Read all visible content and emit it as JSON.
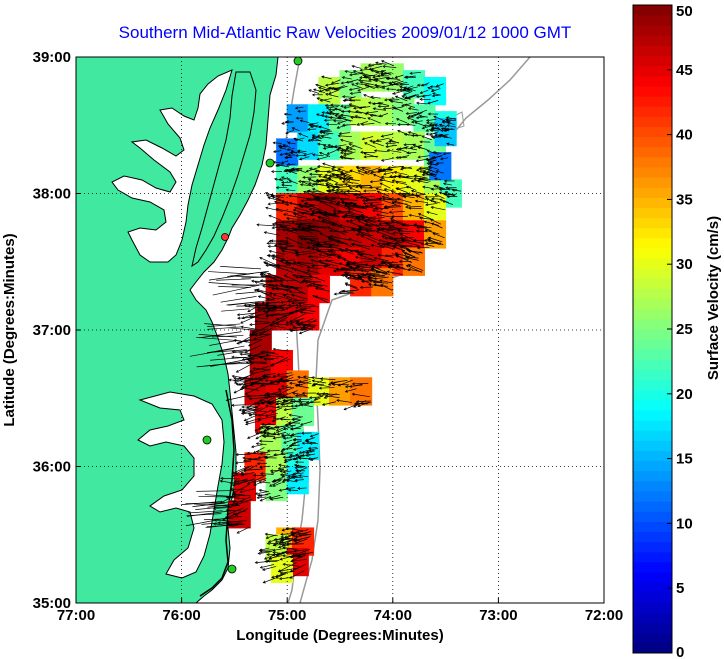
{
  "chart_data": {
    "type": "heatmap",
    "title": "Southern Mid-Atlantic Raw Velocities 2009/01/12 1000 GMT",
    "xlabel": "Longitude (Degrees:Minutes)",
    "ylabel": "Latitude (Degrees:Minutes)",
    "colorbar_label": "Surface Velocity (cm/s)",
    "xlim": [
      -77,
      -72
    ],
    "ylim": [
      35,
      39
    ],
    "x_ticks": [
      {
        "value": -77,
        "label": "77:00"
      },
      {
        "value": -76,
        "label": "76:00"
      },
      {
        "value": -75,
        "label": "75:00"
      },
      {
        "value": -74,
        "label": "74:00"
      },
      {
        "value": -73,
        "label": "73:00"
      },
      {
        "value": -72,
        "label": "72:00"
      }
    ],
    "y_ticks": [
      {
        "value": 35,
        "label": "35:00"
      },
      {
        "value": 36,
        "label": "36:00"
      },
      {
        "value": 37,
        "label": "37:00"
      },
      {
        "value": 38,
        "label": "38:00"
      },
      {
        "value": 39,
        "label": "39:00"
      }
    ],
    "colorbar": {
      "min": 0,
      "max": 50,
      "ticks": [
        {
          "value": 0,
          "label": "0"
        },
        {
          "value": 5,
          "label": "5"
        },
        {
          "value": 10,
          "label": "10"
        },
        {
          "value": 15,
          "label": "15"
        },
        {
          "value": 20,
          "label": "20"
        },
        {
          "value": 25,
          "label": "25"
        },
        {
          "value": 30,
          "label": "30"
        },
        {
          "value": 35,
          "label": "35"
        },
        {
          "value": 40,
          "label": "40"
        },
        {
          "value": 45,
          "label": "45"
        },
        {
          "value": 50,
          "label": "50"
        }
      ]
    },
    "grid": true,
    "velocity_cells": [
      {
        "lon": -74.6,
        "lat": 38.75,
        "speed": 28
      },
      {
        "lon": -74.4,
        "lat": 38.8,
        "speed": 25
      },
      {
        "lon": -74.2,
        "lat": 38.85,
        "speed": 27
      },
      {
        "lon": -74.0,
        "lat": 38.85,
        "speed": 26
      },
      {
        "lon": -73.8,
        "lat": 38.8,
        "speed": 22
      },
      {
        "lon": -73.6,
        "lat": 38.75,
        "speed": 19
      },
      {
        "lon": -74.9,
        "lat": 38.55,
        "speed": 14
      },
      {
        "lon": -74.7,
        "lat": 38.55,
        "speed": 18
      },
      {
        "lon": -74.5,
        "lat": 38.55,
        "speed": 24
      },
      {
        "lon": -74.3,
        "lat": 38.6,
        "speed": 28
      },
      {
        "lon": -74.1,
        "lat": 38.6,
        "speed": 27
      },
      {
        "lon": -73.9,
        "lat": 38.6,
        "speed": 25
      },
      {
        "lon": -73.7,
        "lat": 38.55,
        "speed": 23
      },
      {
        "lon": -73.5,
        "lat": 38.5,
        "speed": 20
      },
      {
        "lon": -75.0,
        "lat": 38.3,
        "speed": 12
      },
      {
        "lon": -74.8,
        "lat": 38.35,
        "speed": 17
      },
      {
        "lon": -74.6,
        "lat": 38.35,
        "speed": 22
      },
      {
        "lon": -74.4,
        "lat": 38.35,
        "speed": 27
      },
      {
        "lon": -74.2,
        "lat": 38.35,
        "speed": 29
      },
      {
        "lon": -74.0,
        "lat": 38.35,
        "speed": 28
      },
      {
        "lon": -73.8,
        "lat": 38.35,
        "speed": 27
      },
      {
        "lon": -73.6,
        "lat": 38.3,
        "speed": 24
      },
      {
        "lon": -73.5,
        "lat": 38.45,
        "speed": 16
      },
      {
        "lon": -75.0,
        "lat": 38.1,
        "speed": 22
      },
      {
        "lon": -74.8,
        "lat": 38.1,
        "speed": 26
      },
      {
        "lon": -74.6,
        "lat": 38.1,
        "speed": 30
      },
      {
        "lon": -74.4,
        "lat": 38.1,
        "speed": 33
      },
      {
        "lon": -74.2,
        "lat": 38.1,
        "speed": 35
      },
      {
        "lon": -74.0,
        "lat": 38.1,
        "speed": 32
      },
      {
        "lon": -73.8,
        "lat": 38.1,
        "speed": 30
      },
      {
        "lon": -73.6,
        "lat": 38.1,
        "speed": 27
      },
      {
        "lon": -73.45,
        "lat": 38.0,
        "speed": 22
      },
      {
        "lon": -73.55,
        "lat": 38.2,
        "speed": 12
      },
      {
        "lon": -75.0,
        "lat": 37.9,
        "speed": 42
      },
      {
        "lon": -74.8,
        "lat": 37.9,
        "speed": 46
      },
      {
        "lon": -74.6,
        "lat": 37.9,
        "speed": 48
      },
      {
        "lon": -74.4,
        "lat": 37.9,
        "speed": 45
      },
      {
        "lon": -74.2,
        "lat": 37.9,
        "speed": 44
      },
      {
        "lon": -74.0,
        "lat": 37.9,
        "speed": 40
      },
      {
        "lon": -73.8,
        "lat": 37.9,
        "speed": 35
      },
      {
        "lon": -73.6,
        "lat": 37.9,
        "speed": 30
      },
      {
        "lon": -75.0,
        "lat": 37.7,
        "speed": 48
      },
      {
        "lon": -74.8,
        "lat": 37.7,
        "speed": 50
      },
      {
        "lon": -74.6,
        "lat": 37.7,
        "speed": 49
      },
      {
        "lon": -74.4,
        "lat": 37.7,
        "speed": 47
      },
      {
        "lon": -74.2,
        "lat": 37.7,
        "speed": 46
      },
      {
        "lon": -74.0,
        "lat": 37.7,
        "speed": 47
      },
      {
        "lon": -73.8,
        "lat": 37.7,
        "speed": 44
      },
      {
        "lon": -73.6,
        "lat": 37.7,
        "speed": 36
      },
      {
        "lon": -75.0,
        "lat": 37.5,
        "speed": 47
      },
      {
        "lon": -74.8,
        "lat": 37.5,
        "speed": 48
      },
      {
        "lon": -74.6,
        "lat": 37.5,
        "speed": 45
      },
      {
        "lon": -74.4,
        "lat": 37.5,
        "speed": 44
      },
      {
        "lon": -74.2,
        "lat": 37.5,
        "speed": 46
      },
      {
        "lon": -74.0,
        "lat": 37.5,
        "speed": 42
      },
      {
        "lon": -73.8,
        "lat": 37.5,
        "speed": 38
      },
      {
        "lon": -75.1,
        "lat": 37.3,
        "speed": 46
      },
      {
        "lon": -74.9,
        "lat": 37.3,
        "speed": 47
      },
      {
        "lon": -74.7,
        "lat": 37.3,
        "speed": 44
      },
      {
        "lon": -74.3,
        "lat": 37.35,
        "speed": 42
      },
      {
        "lon": -74.1,
        "lat": 37.35,
        "speed": 38
      },
      {
        "lon": -75.2,
        "lat": 37.1,
        "speed": 48
      },
      {
        "lon": -75.0,
        "lat": 37.1,
        "speed": 46
      },
      {
        "lon": -74.8,
        "lat": 37.1,
        "speed": 44
      },
      {
        "lon": -75.25,
        "lat": 36.9,
        "speed": 48
      },
      {
        "lon": -75.25,
        "lat": 36.7,
        "speed": 47
      },
      {
        "lon": -75.05,
        "lat": 36.75,
        "speed": 44
      },
      {
        "lon": -75.3,
        "lat": 36.55,
        "speed": 46
      },
      {
        "lon": -75.1,
        "lat": 36.55,
        "speed": 45
      },
      {
        "lon": -74.9,
        "lat": 36.6,
        "speed": 38
      },
      {
        "lon": -74.7,
        "lat": 36.55,
        "speed": 30
      },
      {
        "lon": -74.5,
        "lat": 36.55,
        "speed": 36
      },
      {
        "lon": -74.3,
        "lat": 36.55,
        "speed": 38
      },
      {
        "lon": -75.2,
        "lat": 36.35,
        "speed": 44
      },
      {
        "lon": -75.0,
        "lat": 36.4,
        "speed": 28
      },
      {
        "lon": -74.85,
        "lat": 36.4,
        "speed": 24
      },
      {
        "lon": -75.15,
        "lat": 36.2,
        "speed": 27
      },
      {
        "lon": -74.95,
        "lat": 36.2,
        "speed": 23
      },
      {
        "lon": -74.8,
        "lat": 36.15,
        "speed": 18
      },
      {
        "lon": -75.3,
        "lat": 36.0,
        "speed": 42
      },
      {
        "lon": -75.1,
        "lat": 36.0,
        "speed": 27
      },
      {
        "lon": -74.9,
        "lat": 36.0,
        "speed": 20
      },
      {
        "lon": -75.4,
        "lat": 35.85,
        "speed": 45
      },
      {
        "lon": -75.1,
        "lat": 35.85,
        "speed": 25
      },
      {
        "lon": -74.9,
        "lat": 35.9,
        "speed": 18
      },
      {
        "lon": -75.45,
        "lat": 35.65,
        "speed": 46
      },
      {
        "lon": -75.0,
        "lat": 35.45,
        "speed": 35
      },
      {
        "lon": -74.85,
        "lat": 35.45,
        "speed": 42
      },
      {
        "lon": -75.1,
        "lat": 35.4,
        "speed": 28
      },
      {
        "lon": -74.9,
        "lat": 35.3,
        "speed": 45
      },
      {
        "lon": -75.05,
        "lat": 35.25,
        "speed": 30
      }
    ],
    "vectors": {
      "count": 1400,
      "color": "#000000"
    },
    "land_color": "#40e8a0",
    "coast_color": "#000000",
    "bathymetry_color": "#999999",
    "site_marker_color": "#22cc22"
  }
}
